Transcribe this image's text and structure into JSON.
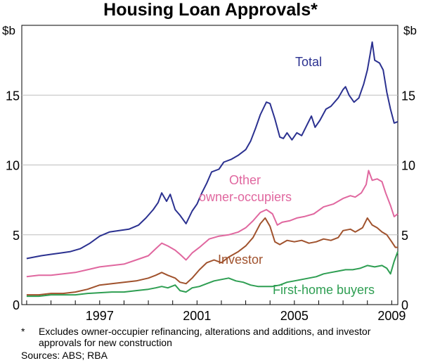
{
  "chart_data": {
    "type": "line",
    "title": "Housing Loan Approvals*",
    "unit_left": "$b",
    "unit_right": "$b",
    "ylim": [
      0,
      20
    ],
    "yticks": [
      0,
      5,
      10,
      15
    ],
    "grid": true,
    "x_range": [
      1993.8,
      2009.25
    ],
    "xticks": [
      1997,
      2001,
      2005,
      2009
    ],
    "series": [
      {
        "name": "Total",
        "color": "#2b3190",
        "points": [
          [
            1994.0,
            3.3
          ],
          [
            1994.3,
            3.4
          ],
          [
            1994.6,
            3.5
          ],
          [
            1995.0,
            3.6
          ],
          [
            1995.4,
            3.7
          ],
          [
            1995.8,
            3.8
          ],
          [
            1996.2,
            4.0
          ],
          [
            1996.6,
            4.4
          ],
          [
            1997.0,
            4.9
          ],
          [
            1997.4,
            5.2
          ],
          [
            1997.8,
            5.3
          ],
          [
            1998.2,
            5.4
          ],
          [
            1998.6,
            5.7
          ],
          [
            1998.9,
            6.2
          ],
          [
            1999.2,
            6.8
          ],
          [
            1999.4,
            7.3
          ],
          [
            1999.55,
            8.0
          ],
          [
            1999.75,
            7.4
          ],
          [
            1999.9,
            7.9
          ],
          [
            2000.1,
            6.8
          ],
          [
            2000.3,
            6.4
          ],
          [
            2000.55,
            5.8
          ],
          [
            2000.8,
            6.7
          ],
          [
            2001.0,
            7.2
          ],
          [
            2001.2,
            8.0
          ],
          [
            2001.4,
            8.7
          ],
          [
            2001.6,
            9.5
          ],
          [
            2001.9,
            9.7
          ],
          [
            2002.1,
            10.2
          ],
          [
            2002.4,
            10.4
          ],
          [
            2002.7,
            10.7
          ],
          [
            2003.0,
            11.1
          ],
          [
            2003.2,
            11.7
          ],
          [
            2003.4,
            12.6
          ],
          [
            2003.6,
            13.6
          ],
          [
            2003.85,
            14.5
          ],
          [
            2004.0,
            14.4
          ],
          [
            2004.2,
            13.3
          ],
          [
            2004.4,
            12.0
          ],
          [
            2004.55,
            11.9
          ],
          [
            2004.7,
            12.3
          ],
          [
            2004.9,
            11.8
          ],
          [
            2005.1,
            12.3
          ],
          [
            2005.3,
            12.1
          ],
          [
            2005.5,
            12.8
          ],
          [
            2005.7,
            13.5
          ],
          [
            2005.85,
            12.7
          ],
          [
            2006.05,
            13.2
          ],
          [
            2006.3,
            14.0
          ],
          [
            2006.5,
            14.2
          ],
          [
            2006.8,
            14.8
          ],
          [
            2007.0,
            15.4
          ],
          [
            2007.1,
            15.6
          ],
          [
            2007.25,
            15.0
          ],
          [
            2007.45,
            14.5
          ],
          [
            2007.65,
            14.8
          ],
          [
            2007.85,
            15.8
          ],
          [
            2008.0,
            16.8
          ],
          [
            2008.1,
            17.8
          ],
          [
            2008.2,
            18.8
          ],
          [
            2008.3,
            17.5
          ],
          [
            2008.5,
            17.3
          ],
          [
            2008.65,
            16.8
          ],
          [
            2008.8,
            15.2
          ],
          [
            2008.95,
            14.0
          ],
          [
            2009.1,
            13.0
          ],
          [
            2009.25,
            13.1
          ]
        ]
      },
      {
        "name": "Other owner-occupiers",
        "color": "#e0679f",
        "points": [
          [
            1994.0,
            2.0
          ],
          [
            1994.5,
            2.1
          ],
          [
            1995.0,
            2.1
          ],
          [
            1995.5,
            2.2
          ],
          [
            1996.0,
            2.3
          ],
          [
            1996.5,
            2.5
          ],
          [
            1997.0,
            2.7
          ],
          [
            1997.5,
            2.8
          ],
          [
            1998.0,
            2.9
          ],
          [
            1998.5,
            3.2
          ],
          [
            1999.0,
            3.5
          ],
          [
            1999.3,
            4.0
          ],
          [
            1999.55,
            4.4
          ],
          [
            1999.8,
            4.2
          ],
          [
            2000.1,
            3.9
          ],
          [
            2000.3,
            3.6
          ],
          [
            2000.55,
            3.2
          ],
          [
            2000.8,
            3.7
          ],
          [
            2001.1,
            4.1
          ],
          [
            2001.5,
            4.7
          ],
          [
            2001.9,
            4.9
          ],
          [
            2002.3,
            5.0
          ],
          [
            2002.7,
            5.2
          ],
          [
            2003.0,
            5.5
          ],
          [
            2003.3,
            6.0
          ],
          [
            2003.6,
            6.6
          ],
          [
            2003.85,
            6.8
          ],
          [
            2004.1,
            6.5
          ],
          [
            2004.3,
            5.7
          ],
          [
            2004.5,
            5.9
          ],
          [
            2004.8,
            6.0
          ],
          [
            2005.1,
            6.2
          ],
          [
            2005.4,
            6.3
          ],
          [
            2005.8,
            6.5
          ],
          [
            2006.2,
            7.0
          ],
          [
            2006.6,
            7.2
          ],
          [
            2007.0,
            7.6
          ],
          [
            2007.3,
            7.8
          ],
          [
            2007.5,
            7.7
          ],
          [
            2007.75,
            8.0
          ],
          [
            2007.95,
            8.6
          ],
          [
            2008.05,
            9.6
          ],
          [
            2008.2,
            8.9
          ],
          [
            2008.4,
            9.0
          ],
          [
            2008.6,
            8.8
          ],
          [
            2008.75,
            8.0
          ],
          [
            2008.95,
            7.1
          ],
          [
            2009.1,
            6.3
          ],
          [
            2009.25,
            6.5
          ]
        ]
      },
      {
        "name": "Investor",
        "color": "#a0522d",
        "points": [
          [
            1994.0,
            0.7
          ],
          [
            1994.5,
            0.7
          ],
          [
            1995.0,
            0.8
          ],
          [
            1995.5,
            0.8
          ],
          [
            1996.0,
            0.9
          ],
          [
            1996.5,
            1.1
          ],
          [
            1997.0,
            1.4
          ],
          [
            1997.5,
            1.5
          ],
          [
            1998.0,
            1.6
          ],
          [
            1998.5,
            1.7
          ],
          [
            1999.0,
            1.9
          ],
          [
            1999.3,
            2.1
          ],
          [
            1999.55,
            2.3
          ],
          [
            1999.8,
            2.1
          ],
          [
            2000.1,
            1.9
          ],
          [
            2000.3,
            1.6
          ],
          [
            2000.55,
            1.5
          ],
          [
            2000.8,
            1.9
          ],
          [
            2001.1,
            2.5
          ],
          [
            2001.4,
            3.0
          ],
          [
            2001.7,
            3.2
          ],
          [
            2002.0,
            3.0
          ],
          [
            2002.3,
            3.4
          ],
          [
            2002.7,
            3.8
          ],
          [
            2003.0,
            4.2
          ],
          [
            2003.3,
            4.8
          ],
          [
            2003.6,
            5.8
          ],
          [
            2003.8,
            6.2
          ],
          [
            2004.0,
            5.6
          ],
          [
            2004.2,
            4.5
          ],
          [
            2004.4,
            4.3
          ],
          [
            2004.7,
            4.6
          ],
          [
            2005.0,
            4.5
          ],
          [
            2005.3,
            4.6
          ],
          [
            2005.6,
            4.4
          ],
          [
            2005.9,
            4.5
          ],
          [
            2006.2,
            4.7
          ],
          [
            2006.5,
            4.6
          ],
          [
            2006.8,
            4.8
          ],
          [
            2007.0,
            5.3
          ],
          [
            2007.3,
            5.4
          ],
          [
            2007.5,
            5.2
          ],
          [
            2007.8,
            5.5
          ],
          [
            2008.0,
            6.2
          ],
          [
            2008.2,
            5.7
          ],
          [
            2008.4,
            5.5
          ],
          [
            2008.6,
            5.2
          ],
          [
            2008.8,
            5.0
          ],
          [
            2009.0,
            4.5
          ],
          [
            2009.15,
            4.1
          ],
          [
            2009.25,
            4.1
          ]
        ]
      },
      {
        "name": "First-home buyers",
        "color": "#2e9e52",
        "points": [
          [
            1994.0,
            0.6
          ],
          [
            1994.5,
            0.6
          ],
          [
            1995.0,
            0.7
          ],
          [
            1995.5,
            0.7
          ],
          [
            1996.0,
            0.7
          ],
          [
            1996.5,
            0.8
          ],
          [
            1997.0,
            0.85
          ],
          [
            1997.5,
            0.9
          ],
          [
            1998.0,
            0.9
          ],
          [
            1998.5,
            1.0
          ],
          [
            1999.0,
            1.1
          ],
          [
            1999.3,
            1.2
          ],
          [
            1999.55,
            1.3
          ],
          [
            1999.8,
            1.2
          ],
          [
            2000.1,
            1.4
          ],
          [
            2000.3,
            1.0
          ],
          [
            2000.55,
            0.9
          ],
          [
            2000.8,
            1.2
          ],
          [
            2001.1,
            1.3
          ],
          [
            2001.4,
            1.5
          ],
          [
            2001.7,
            1.7
          ],
          [
            2002.0,
            1.8
          ],
          [
            2002.3,
            1.9
          ],
          [
            2002.6,
            1.7
          ],
          [
            2002.9,
            1.6
          ],
          [
            2003.2,
            1.4
          ],
          [
            2003.5,
            1.3
          ],
          [
            2003.8,
            1.3
          ],
          [
            2004.1,
            1.3
          ],
          [
            2004.4,
            1.4
          ],
          [
            2004.7,
            1.6
          ],
          [
            2005.0,
            1.7
          ],
          [
            2005.3,
            1.8
          ],
          [
            2005.6,
            1.9
          ],
          [
            2005.9,
            2.0
          ],
          [
            2006.2,
            2.2
          ],
          [
            2006.5,
            2.3
          ],
          [
            2006.8,
            2.4
          ],
          [
            2007.1,
            2.5
          ],
          [
            2007.4,
            2.5
          ],
          [
            2007.7,
            2.6
          ],
          [
            2008.0,
            2.8
          ],
          [
            2008.3,
            2.7
          ],
          [
            2008.6,
            2.8
          ],
          [
            2008.8,
            2.6
          ],
          [
            2008.95,
            2.2
          ],
          [
            2009.1,
            3.1
          ],
          [
            2009.25,
            3.8
          ]
        ]
      }
    ],
    "annotations": {
      "total": "Total",
      "other_line1": "Other",
      "other_line2": "owner-occupiers",
      "investor": "Investor",
      "first_home": "First-home buyers"
    }
  },
  "footnote_mark": "*",
  "footnote": "Excludes owner-occupier refinancing, alterations and additions, and investor approvals for new construction",
  "sources": "Sources: ABS; RBA"
}
